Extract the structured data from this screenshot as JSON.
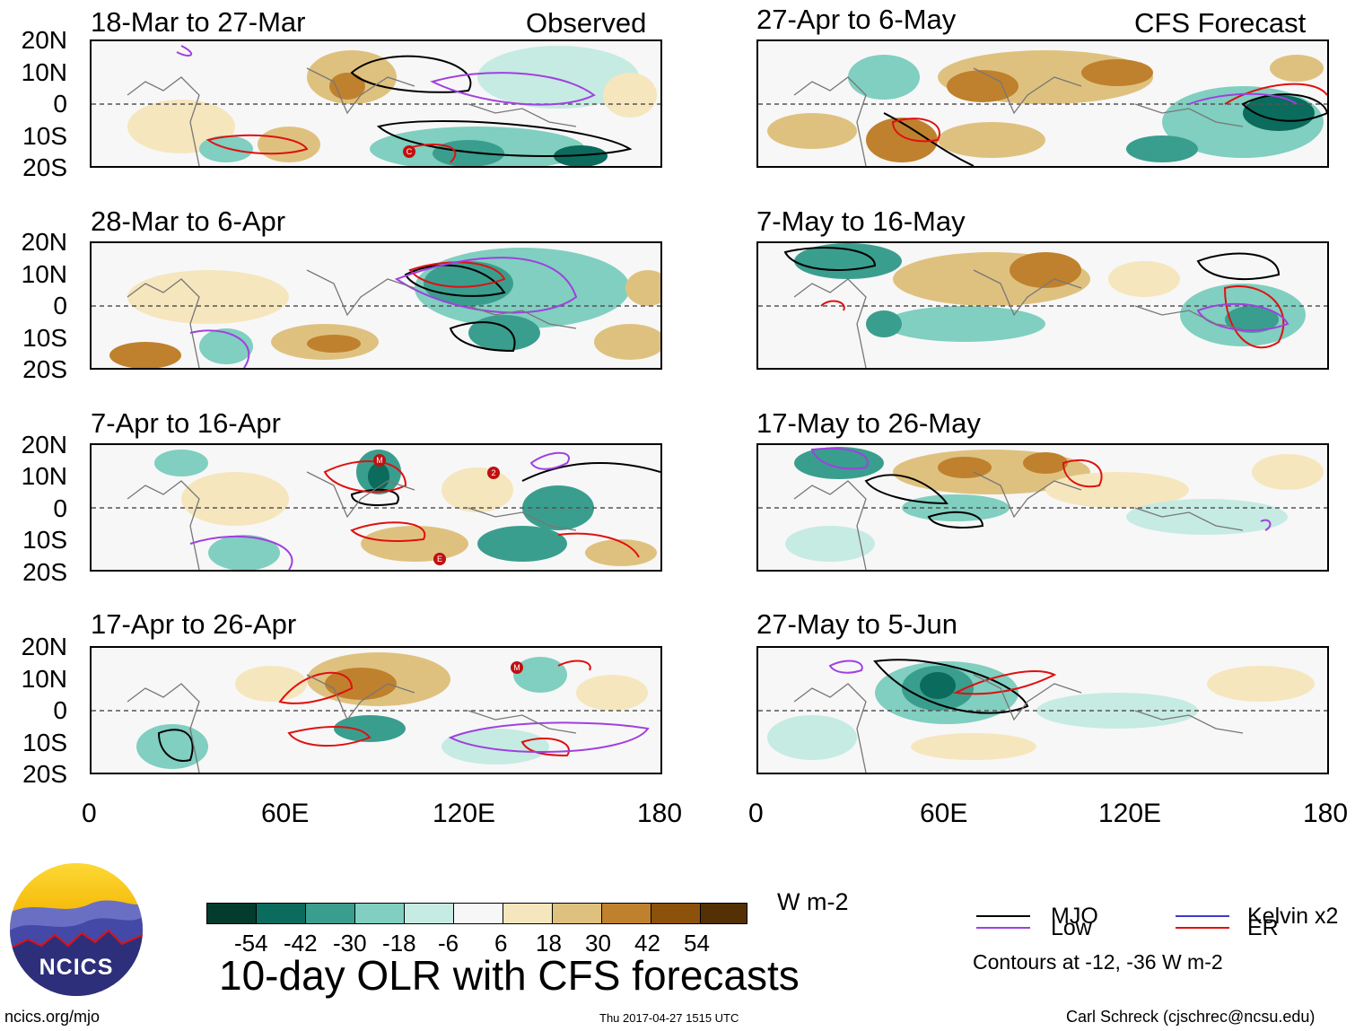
{
  "observed_header": "Observed",
  "forecast_header": "CFS Forecast",
  "latitude_labels": [
    "20N",
    "10N",
    "0",
    "10S",
    "20S"
  ],
  "longitude_labels": [
    "0",
    "60E",
    "120E",
    "180"
  ],
  "panels_left": [
    {
      "label": "18-Mar to 27-Mar"
    },
    {
      "label": "28-Mar to 6-Apr"
    },
    {
      "label": "7-Apr to 16-Apr"
    },
    {
      "label": "17-Apr to 26-Apr"
    }
  ],
  "panels_right": [
    {
      "label": "27-Apr to 6-May"
    },
    {
      "label": "7-May to 16-May"
    },
    {
      "label": "17-May to 26-May"
    },
    {
      "label": "27-May to 5-Jun"
    }
  ],
  "storm_markers": [
    "C",
    "M",
    "2",
    "E",
    "M"
  ],
  "colorbar": {
    "colors": [
      "#033c2c",
      "#0b6b5c",
      "#3a9e8e",
      "#80cfc0",
      "#c6ebe2",
      "#f7f7f7",
      "#f6e6bd",
      "#dfc17f",
      "#bf812d",
      "#8c510a",
      "#543005"
    ],
    "labels": [
      "-54",
      "-42",
      "-30",
      "-18",
      "-6",
      "6",
      "18",
      "30",
      "42",
      "54"
    ],
    "units": "W m-2"
  },
  "legend": {
    "mjo": "MJO",
    "kelvin": "Kelvin x2",
    "low": "Low",
    "er": "ER",
    "colors": {
      "mjo": "#000000",
      "kelvin": "#3c3cc8",
      "low": "#a040e0",
      "er": "#e01010"
    },
    "contour_note": "Contours at -12, -36 W m-2"
  },
  "logo_text": "NCICS",
  "title": "10-day OLR with CFS forecasts",
  "footer": {
    "url": "ncics.org/mjo",
    "timestamp": "Thu 2017-04-27 1515 UTC",
    "credit": "Carl Schreck (cjschrec@ncsu.edu)"
  }
}
